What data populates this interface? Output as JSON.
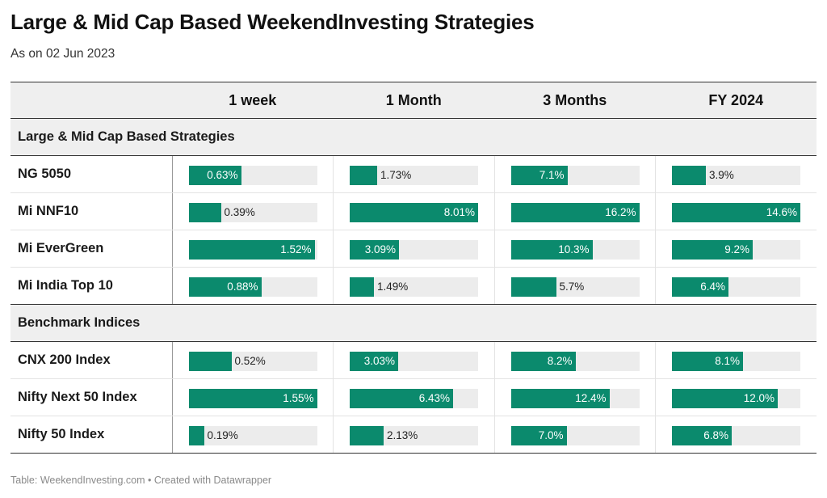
{
  "title": "Large & Mid Cap Based WeekendInvesting Strategies",
  "subtitle": "As on 02 Jun 2023",
  "footer": "Table: WeekendInvesting.com • Created with Datawrapper",
  "colors": {
    "bar": "#0b8a6d",
    "track": "#ececec",
    "header_bg": "#efefef"
  },
  "chart_data": {
    "type": "table",
    "columns": [
      "1 week",
      "1 Month",
      "3 Months",
      "FY 2024"
    ],
    "column_max": [
      1.55,
      8.01,
      16.2,
      14.6
    ],
    "groups": [
      {
        "label": "Large & Mid Cap Based Strategies",
        "rows": [
          {
            "name": "NG 5050",
            "values": [
              0.63,
              1.73,
              7.1,
              3.9
            ],
            "labels": [
              "0.63%",
              "1.73%",
              "7.1%",
              "3.9%"
            ]
          },
          {
            "name": "Mi NNF10",
            "values": [
              0.39,
              8.01,
              16.2,
              14.6
            ],
            "labels": [
              "0.39%",
              "8.01%",
              "16.2%",
              "14.6%"
            ]
          },
          {
            "name": "Mi EverGreen",
            "values": [
              1.52,
              3.09,
              10.3,
              9.2
            ],
            "labels": [
              "1.52%",
              "3.09%",
              "10.3%",
              "9.2%"
            ]
          },
          {
            "name": "Mi India Top 10",
            "values": [
              0.88,
              1.49,
              5.7,
              6.4
            ],
            "labels": [
              "0.88%",
              "1.49%",
              "5.7%",
              "6.4%"
            ]
          }
        ]
      },
      {
        "label": "Benchmark Indices",
        "rows": [
          {
            "name": "CNX 200 Index",
            "values": [
              0.52,
              3.03,
              8.2,
              8.1
            ],
            "labels": [
              "0.52%",
              "3.03%",
              "8.2%",
              "8.1%"
            ]
          },
          {
            "name": "Nifty Next 50 Index",
            "values": [
              1.55,
              6.43,
              12.4,
              12.0
            ],
            "labels": [
              "1.55%",
              "6.43%",
              "12.4%",
              "12.0%"
            ]
          },
          {
            "name": "Nifty 50 Index",
            "values": [
              0.19,
              2.13,
              7.0,
              6.8
            ],
            "labels": [
              "0.19%",
              "2.13%",
              "7.0%",
              "6.8%"
            ]
          }
        ]
      }
    ]
  }
}
